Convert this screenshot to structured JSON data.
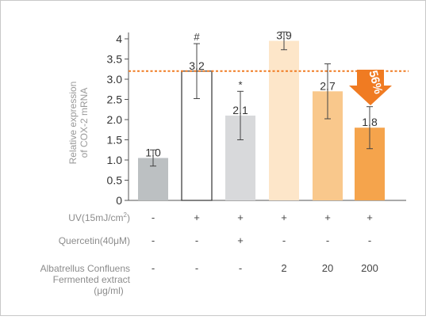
{
  "chart_data": {
    "type": "bar",
    "ylabel_lines": [
      "Relative expression",
      "of COX-2 mRNA"
    ],
    "ylim": [
      0,
      4
    ],
    "yticks": [
      "0",
      "0.5",
      "1.0",
      "1.5",
      "2.0",
      "2.5",
      "3.0",
      "3.5",
      "4"
    ],
    "values": [
      1.05,
      3.2,
      2.1,
      3.95,
      2.7,
      1.8
    ],
    "value_labels": [
      "1.0",
      "3.2",
      "2.1",
      "3.9",
      "2.7",
      "1.8"
    ],
    "error": [
      0.2,
      0.68,
      0.6,
      0.22,
      0.68,
      0.52
    ],
    "markers": [
      "",
      "#",
      "*",
      "",
      "",
      "*"
    ],
    "bar_colors": [
      "#bcc0c2",
      "#ffffff",
      "#d8d9db",
      "#fde6c9",
      "#f9c88c",
      "#f5a44c"
    ],
    "reference_line": {
      "value": 3.2,
      "color": "#f07b22"
    },
    "annotation": {
      "text": "56%",
      "color": "#f07b22"
    },
    "grid": false
  },
  "conditions": [
    {
      "label": "UV(15mJ/cm",
      "superscript": "2",
      "label_end": ")",
      "values": [
        "-",
        "+",
        "+",
        "+",
        "+",
        "+"
      ]
    },
    {
      "label": "Quercetin(40μM)",
      "values": [
        "-",
        "-",
        "+",
        "-",
        "-",
        "-"
      ]
    },
    {
      "label_lines": [
        "Albatrellus Confluens",
        "Fermented extract",
        "(μg/ml)"
      ],
      "values": [
        "-",
        "-",
        "-",
        "2",
        "20",
        "200"
      ]
    }
  ]
}
